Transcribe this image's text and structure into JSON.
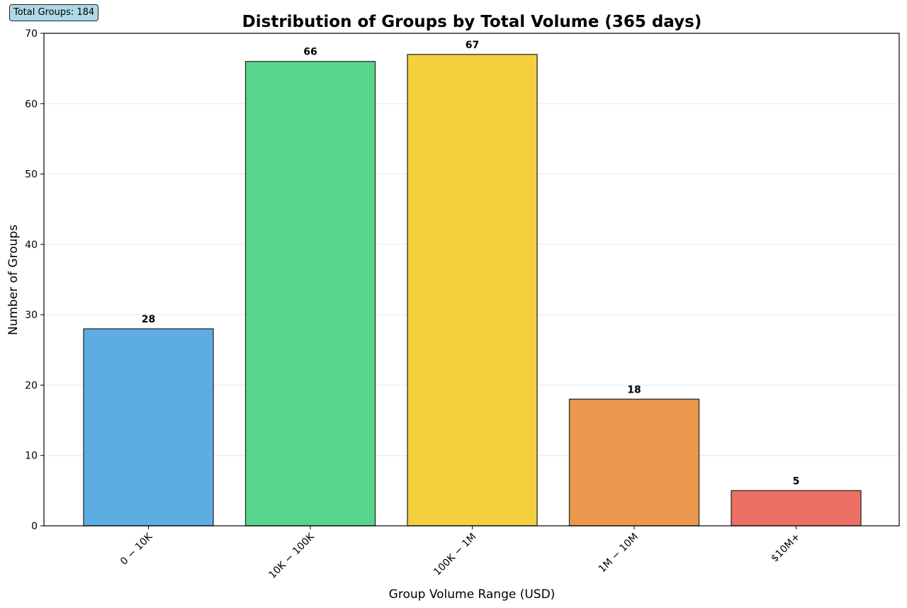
{
  "badge": {
    "total_groups": "Total Groups: 184"
  },
  "chart_data": {
    "type": "bar",
    "title": "Distribution of Groups by Total Volume (365 days)",
    "xlabel": "Group Volume Range (USD)",
    "ylabel": "Number of Groups",
    "categories": [
      "$0-$10K",
      "$10K-$100K",
      "$100K-$1M",
      "$1M-$10M",
      "$10M+"
    ],
    "tick_labels": [
      "0 − 10K",
      "10K − 100K",
      "100K − 1M",
      "1M − 10M",
      "$10M+"
    ],
    "values": [
      28,
      66,
      67,
      18,
      5
    ],
    "colors": [
      "#5dade2",
      "#58d68d",
      "#f4d03f",
      "#eb984e",
      "#ec7063"
    ],
    "ylim": [
      0,
      70
    ],
    "yticks": [
      0,
      10,
      20,
      30,
      40,
      50,
      60,
      70
    ],
    "grid": "y",
    "data_labels": true
  }
}
